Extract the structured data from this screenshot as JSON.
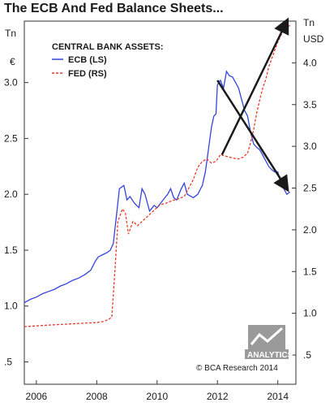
{
  "title": "The ECB And Fed Balance Sheets...",
  "logo_text": "ANALYTICS",
  "credit": "© BCA Research 2014",
  "colors": {
    "ecb": "#3344dd",
    "fed": "#e83a2a",
    "arrow": "#1a1a1a",
    "frame": "#333333"
  },
  "chart_data": {
    "type": "line",
    "title": "The ECB And Fed Balance Sheets...",
    "legend_title": "CENTRAL BANK ASSETS:",
    "legend_position": "top-left",
    "left_axis": {
      "unit_line1": "Tn",
      "unit_line2": "€",
      "ylim": [
        0.3,
        3.55
      ],
      "ticks": [
        0.5,
        1.0,
        1.5,
        2.0,
        2.5,
        3.0
      ],
      "tick_labels": [
        ".5",
        "1.0",
        "1.5",
        "2.0",
        "2.5",
        "3.0"
      ]
    },
    "right_axis": {
      "unit_line1": "Tn",
      "unit_line2": "USD",
      "ylim": [
        0.15,
        4.5
      ],
      "ticks": [
        0.5,
        1.0,
        1.5,
        2.0,
        2.5,
        3.0,
        3.5,
        4.0
      ],
      "tick_labels": [
        ".5",
        "1.0",
        "1.5",
        "2.0",
        "2.5",
        "3.0",
        "3.5",
        "4.0"
      ]
    },
    "x_axis": {
      "xlim": [
        2005.6,
        2014.6
      ],
      "ticks": [
        2006,
        2008,
        2010,
        2012,
        2014
      ],
      "tick_labels": [
        "2006",
        "2008",
        "2010",
        "2012",
        "2014"
      ]
    },
    "grid": false,
    "series": [
      {
        "name": "ECB (LS)",
        "axis": "left",
        "style": "solid",
        "x": [
          2005.6,
          2005.8,
          2006.0,
          2006.2,
          2006.4,
          2006.6,
          2006.8,
          2007.0,
          2007.2,
          2007.4,
          2007.6,
          2007.8,
          2007.95,
          2008.05,
          2008.2,
          2008.35,
          2008.45,
          2008.55,
          2008.65,
          2008.75,
          2008.9,
          2009.0,
          2009.1,
          2009.25,
          2009.4,
          2009.5,
          2009.6,
          2009.75,
          2009.9,
          2010.0,
          2010.2,
          2010.35,
          2010.45,
          2010.55,
          2010.65,
          2010.8,
          2010.9,
          2011.0,
          2011.2,
          2011.35,
          2011.5,
          2011.6,
          2011.7,
          2011.8,
          2011.88,
          2011.95,
          2012.0,
          2012.1,
          2012.2,
          2012.3,
          2012.4,
          2012.5,
          2012.6,
          2012.7,
          2012.8,
          2012.9,
          2013.0,
          2013.1,
          2013.2,
          2013.3,
          2013.4,
          2013.5,
          2013.6,
          2013.7,
          2013.8,
          2013.9,
          2014.0,
          2014.1,
          2014.2,
          2014.3,
          2014.4
        ],
        "y": [
          1.03,
          1.06,
          1.08,
          1.11,
          1.13,
          1.15,
          1.18,
          1.2,
          1.23,
          1.25,
          1.28,
          1.32,
          1.4,
          1.44,
          1.46,
          1.48,
          1.5,
          1.56,
          1.8,
          2.05,
          2.08,
          1.95,
          1.98,
          1.92,
          1.88,
          2.05,
          2.0,
          1.85,
          1.9,
          1.88,
          1.95,
          2.0,
          2.05,
          1.97,
          1.95,
          2.05,
          2.1,
          2.0,
          1.97,
          2.0,
          2.08,
          2.2,
          2.4,
          2.6,
          2.7,
          2.72,
          2.98,
          3.02,
          2.95,
          3.1,
          3.06,
          3.05,
          3.0,
          2.95,
          2.85,
          2.75,
          2.7,
          2.55,
          2.45,
          2.42,
          2.4,
          2.35,
          2.3,
          2.25,
          2.22,
          2.2,
          2.2,
          2.1,
          2.05,
          2.0,
          2.02
        ]
      },
      {
        "name": "FED (RS)",
        "axis": "right",
        "style": "dashed",
        "x": [
          2005.6,
          2006.0,
          2006.5,
          2007.0,
          2007.5,
          2008.0,
          2008.2,
          2008.35,
          2008.5,
          2008.6,
          2008.7,
          2008.85,
          2008.95,
          2009.05,
          2009.2,
          2009.35,
          2009.5,
          2009.65,
          2009.8,
          2009.95,
          2010.1,
          2010.3,
          2010.5,
          2010.7,
          2010.9,
          2011.05,
          2011.2,
          2011.35,
          2011.5,
          2011.65,
          2011.8,
          2011.95,
          2012.1,
          2012.3,
          2012.5,
          2012.7,
          2012.85,
          2013.0,
          2013.1,
          2013.2,
          2013.3,
          2013.4,
          2013.5,
          2013.6,
          2013.7,
          2013.8,
          2013.9,
          2014.0,
          2014.1,
          2014.2,
          2014.3,
          2014.4
        ],
        "y": [
          0.84,
          0.85,
          0.86,
          0.87,
          0.88,
          0.89,
          0.9,
          0.92,
          0.95,
          1.5,
          2.1,
          2.25,
          2.2,
          1.95,
          2.1,
          2.05,
          2.1,
          2.15,
          2.2,
          2.25,
          2.3,
          2.32,
          2.35,
          2.37,
          2.4,
          2.5,
          2.6,
          2.75,
          2.82,
          2.85,
          2.8,
          2.82,
          2.9,
          2.88,
          2.86,
          2.85,
          2.87,
          2.92,
          3.05,
          3.2,
          3.4,
          3.55,
          3.7,
          3.8,
          3.95,
          4.05,
          4.15,
          4.25,
          4.33,
          4.38,
          4.42,
          4.45
        ]
      }
    ],
    "arrows": [
      {
        "from": {
          "x": 2012.0,
          "y_left": 3.02
        },
        "to": {
          "x": 2014.3,
          "y_left": 2.05
        }
      },
      {
        "from": {
          "x": 2012.15,
          "y_right": 2.9
        },
        "to": {
          "x": 2014.3,
          "y_right": 4.5
        }
      }
    ]
  }
}
